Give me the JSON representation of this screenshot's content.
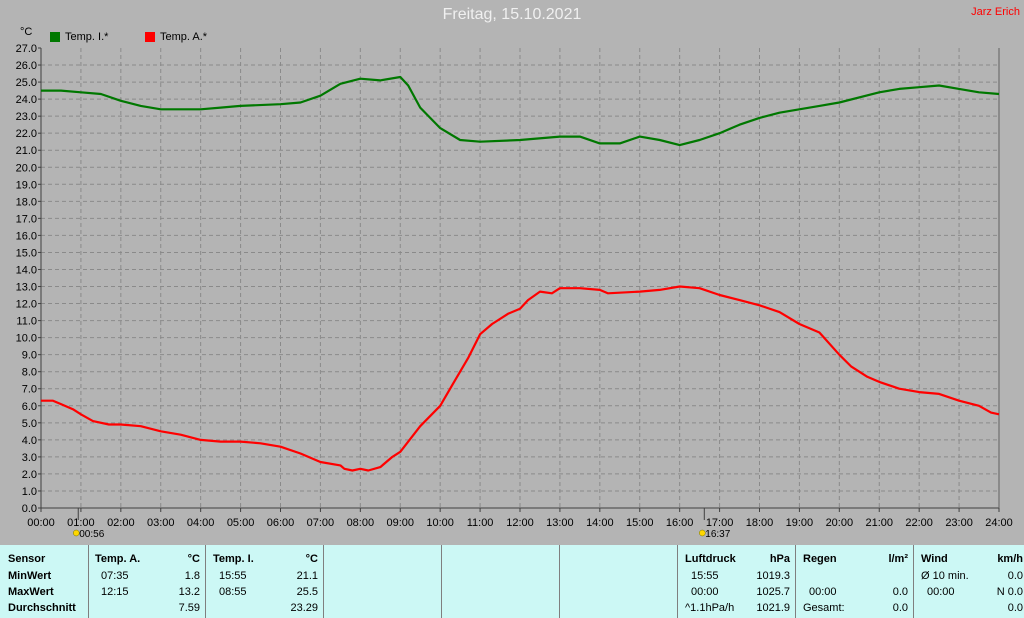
{
  "header": {
    "title": "Freitag, 15.10.2021",
    "author": "Jarz Erich",
    "unit": "°C"
  },
  "legend": [
    {
      "label": "Temp. I.*",
      "color": "#007800"
    },
    {
      "label": "Temp. A.*",
      "color": "#ff0000"
    }
  ],
  "chart_data": {
    "type": "line",
    "ylim": [
      0,
      27
    ],
    "y_ticks": [
      "0.0",
      "1.0",
      "2.0",
      "3.0",
      "4.0",
      "5.0",
      "6.0",
      "7.0",
      "8.0",
      "9.0",
      "10.0",
      "11.0",
      "12.0",
      "13.0",
      "14.0",
      "15.0",
      "16.0",
      "17.0",
      "18.0",
      "19.0",
      "20.0",
      "21.0",
      "22.0",
      "23.0",
      "24.0",
      "25.0",
      "26.0",
      "27.0"
    ],
    "x_ticks": [
      "00:00",
      "01:00",
      "02:00",
      "03:00",
      "04:00",
      "05:00",
      "06:00",
      "07:00",
      "08:00",
      "09:00",
      "10:00",
      "11:00",
      "12:00",
      "13:00",
      "14:00",
      "15:00",
      "16:00",
      "17:00",
      "18:00",
      "19:00",
      "20:00",
      "21:00",
      "22:00",
      "23:00",
      "24:00"
    ],
    "grid": true,
    "markers": [
      {
        "time": 0.933,
        "label": "00:56",
        "icon": "sunrise-icon"
      },
      {
        "time": 16.617,
        "label": "16:37",
        "icon": "sunset-icon"
      }
    ],
    "series": [
      {
        "name": "Temp. I.*",
        "color": "#007800",
        "points": [
          [
            0,
            24.5
          ],
          [
            0.5,
            24.5
          ],
          [
            1,
            24.4
          ],
          [
            1.5,
            24.3
          ],
          [
            2,
            23.9
          ],
          [
            2.5,
            23.6
          ],
          [
            3,
            23.4
          ],
          [
            4,
            23.4
          ],
          [
            4.5,
            23.5
          ],
          [
            5,
            23.6
          ],
          [
            6,
            23.7
          ],
          [
            6.5,
            23.8
          ],
          [
            7,
            24.2
          ],
          [
            7.5,
            24.9
          ],
          [
            8,
            25.2
          ],
          [
            8.5,
            25.1
          ],
          [
            9,
            25.3
          ],
          [
            9.2,
            24.8
          ],
          [
            9.5,
            23.5
          ],
          [
            10,
            22.3
          ],
          [
            10.5,
            21.6
          ],
          [
            11,
            21.5
          ],
          [
            12,
            21.6
          ],
          [
            13,
            21.8
          ],
          [
            13.5,
            21.8
          ],
          [
            14,
            21.4
          ],
          [
            14.5,
            21.4
          ],
          [
            15,
            21.8
          ],
          [
            15.5,
            21.6
          ],
          [
            16,
            21.3
          ],
          [
            16.5,
            21.6
          ],
          [
            17,
            22.0
          ],
          [
            17.5,
            22.5
          ],
          [
            18,
            22.9
          ],
          [
            18.5,
            23.2
          ],
          [
            19,
            23.4
          ],
          [
            19.5,
            23.6
          ],
          [
            20,
            23.8
          ],
          [
            21,
            24.4
          ],
          [
            21.5,
            24.6
          ],
          [
            22,
            24.7
          ],
          [
            22.5,
            24.8
          ],
          [
            23,
            24.6
          ],
          [
            23.5,
            24.4
          ],
          [
            24,
            24.3
          ]
        ]
      },
      {
        "name": "Temp. A.*",
        "color": "#ff0000",
        "points": [
          [
            0,
            6.3
          ],
          [
            0.3,
            6.3
          ],
          [
            0.5,
            6.1
          ],
          [
            0.8,
            5.8
          ],
          [
            1,
            5.5
          ],
          [
            1.3,
            5.1
          ],
          [
            1.7,
            4.9
          ],
          [
            2,
            4.9
          ],
          [
            2.5,
            4.8
          ],
          [
            3,
            4.5
          ],
          [
            3.5,
            4.3
          ],
          [
            4,
            4.0
          ],
          [
            4.5,
            3.9
          ],
          [
            5,
            3.9
          ],
          [
            5.5,
            3.8
          ],
          [
            6,
            3.6
          ],
          [
            6.5,
            3.2
          ],
          [
            7,
            2.7
          ],
          [
            7.5,
            2.5
          ],
          [
            7.6,
            2.3
          ],
          [
            7.8,
            2.2
          ],
          [
            8,
            2.3
          ],
          [
            8.2,
            2.2
          ],
          [
            8.5,
            2.4
          ],
          [
            8.8,
            3.0
          ],
          [
            9,
            3.3
          ],
          [
            9.5,
            4.8
          ],
          [
            10,
            6.0
          ],
          [
            10.3,
            7.2
          ],
          [
            10.7,
            8.8
          ],
          [
            11,
            10.2
          ],
          [
            11.3,
            10.8
          ],
          [
            11.7,
            11.4
          ],
          [
            12,
            11.7
          ],
          [
            12.2,
            12.2
          ],
          [
            12.5,
            12.7
          ],
          [
            12.8,
            12.6
          ],
          [
            13,
            12.9
          ],
          [
            13.5,
            12.9
          ],
          [
            14,
            12.8
          ],
          [
            14.2,
            12.6
          ],
          [
            15,
            12.7
          ],
          [
            15.5,
            12.8
          ],
          [
            16,
            13.0
          ],
          [
            16.5,
            12.9
          ],
          [
            17,
            12.5
          ],
          [
            17.5,
            12.2
          ],
          [
            18,
            11.9
          ],
          [
            18.5,
            11.5
          ],
          [
            19,
            10.8
          ],
          [
            19.5,
            10.3
          ],
          [
            20,
            9.0
          ],
          [
            20.3,
            8.3
          ],
          [
            20.7,
            7.7
          ],
          [
            21,
            7.4
          ],
          [
            21.5,
            7.0
          ],
          [
            22,
            6.8
          ],
          [
            22.5,
            6.7
          ],
          [
            23,
            6.3
          ],
          [
            23.5,
            6.0
          ],
          [
            23.8,
            5.6
          ],
          [
            24,
            5.5
          ]
        ]
      }
    ]
  },
  "table": {
    "sensor": {
      "header": "Sensor",
      "rows": [
        "MinWert",
        "MaxWert",
        "Durchschnitt"
      ]
    },
    "temp_a": {
      "header": "Temp. A.",
      "unit": "°C",
      "min_time": "07:35",
      "min_val": "1.8",
      "max_time": "12:15",
      "max_val": "13.2",
      "avg": "7.59"
    },
    "temp_i": {
      "header": "Temp. I.",
      "unit": "°C",
      "min_time": "15:55",
      "min_val": "21.1",
      "max_time": "08:55",
      "max_val": "25.5",
      "avg": "23.29"
    },
    "pressure": {
      "header": "Luftdruck",
      "unit": "hPa",
      "r1_label": "15:55",
      "r1_val": "1019.3",
      "r2_label": "00:00",
      "r2_val": "1025.7",
      "r3_label": "^1.1hPa/h",
      "r3_val": "1021.9"
    },
    "rain": {
      "header": "Regen",
      "unit": "l/m²",
      "r2_label": "00:00",
      "r2_val": "0.0",
      "r3_label": "Gesamt:",
      "r3_val": "0.0"
    },
    "wind": {
      "header": "Wind",
      "unit": "km/h",
      "r1_label": "Ø 10 min.",
      "r1_val": "0.0",
      "r2_label": "00:00",
      "r2_val": "N 0.0",
      "r3_val": "0.0"
    }
  }
}
